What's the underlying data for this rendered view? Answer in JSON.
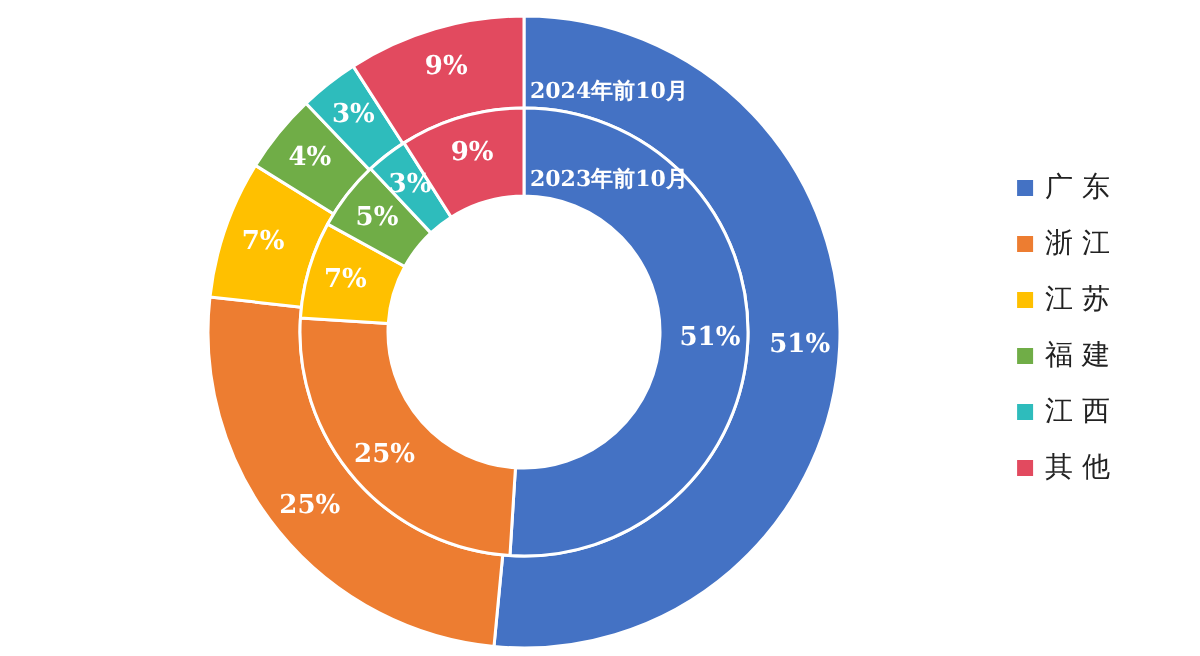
{
  "chart_data": {
    "type": "donut",
    "categories": [
      "广 东",
      "浙 江",
      "江 苏",
      "福 建",
      "江 西",
      "其 他"
    ],
    "colors": [
      "#4472c4",
      "#ed7d31",
      "#ffc000",
      "#70ad47",
      "#2ebcbc",
      "#e24a5f"
    ],
    "series": [
      {
        "name": "2024年前10月",
        "values": [
          51,
          25,
          7,
          4,
          3,
          9
        ],
        "value_labels": [
          "51%",
          "25%",
          "7%",
          "4%",
          "3%",
          "9%"
        ]
      },
      {
        "name": "2023年前10月",
        "values": [
          51,
          25,
          7,
          5,
          3,
          9
        ],
        "value_labels": [
          "51%",
          "25%",
          "7%",
          "5%",
          "3%",
          "9%"
        ]
      }
    ],
    "legend": "right"
  }
}
